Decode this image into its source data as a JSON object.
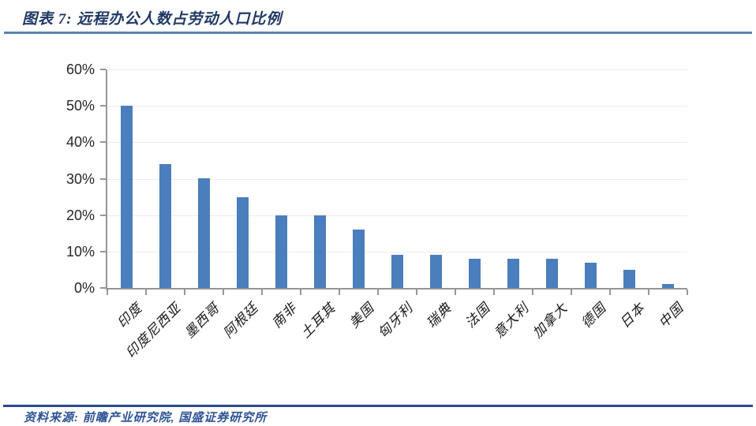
{
  "header": {
    "title": "图表 7: 远程办公人数占劳动人口比例"
  },
  "footer": {
    "source": "资料来源: 前瞻产业研究院, 国盛证券研究所"
  },
  "chart_data": {
    "type": "bar",
    "title": "远程办公人数占劳动人口比例",
    "categories": [
      "印度",
      "印度尼西亚",
      "墨西哥",
      "阿根廷",
      "南非",
      "土耳其",
      "美国",
      "匈牙利",
      "瑞典",
      "法国",
      "意大利",
      "加拿大",
      "德国",
      "日本",
      "中国"
    ],
    "values": [
      50,
      34,
      30,
      25,
      20,
      20,
      16,
      9,
      9,
      8,
      8,
      8,
      7,
      5,
      1
    ],
    "unit": "%",
    "xlabel": "",
    "ylabel": "",
    "ylim": [
      0,
      60
    ],
    "ytick_step": 10,
    "ytick_labels": [
      "0%",
      "10%",
      "20%",
      "30%",
      "40%",
      "50%",
      "60%"
    ],
    "grid": true,
    "legend": "none",
    "bar_color": "#4A7EBD"
  },
  "colors": {
    "title_text": "#1F3864",
    "top_rule": "#5B83B3",
    "bottom_rule": "#2B4A88",
    "source_text": "#2F5496",
    "bar": "#4A7EBD",
    "axis": "#969696",
    "gridline": "#ECECEC",
    "axis_label": "#262626"
  }
}
